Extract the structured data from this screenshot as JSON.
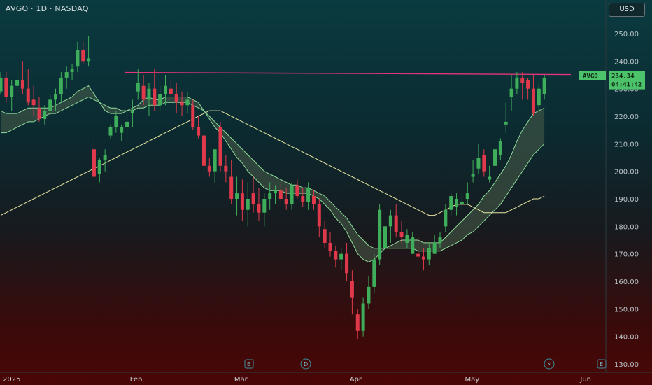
{
  "header": {
    "title": "AVGO · 1D · NASDAQ",
    "currency": "USD"
  },
  "price_tag": {
    "symbol": "AVGO",
    "price": "234.34",
    "countdown": "04:41:42"
  },
  "event_markers": [
    {
      "label": "E",
      "type": "earnings"
    },
    {
      "label": "D",
      "type": "dividend"
    },
    {
      "label": "⚡",
      "type": "flash"
    },
    {
      "label": "E",
      "type": "earnings"
    }
  ],
  "colors": {
    "up": "#3fae5a",
    "down": "#e0394b",
    "resistance": "#e0357a",
    "ema_band_fill": "#4a5f4a",
    "ema_line": "#8fdc9a",
    "sma_line": "#e6e3a0"
  },
  "chart_data": {
    "type": "candlestick",
    "symbol": "AVGO",
    "interval": "1D",
    "exchange": "NASDAQ",
    "ylim": [
      128,
      256
    ],
    "yticks": [
      130,
      140,
      150,
      160,
      170,
      180,
      190,
      200,
      210,
      220,
      230,
      240,
      250
    ],
    "ytick_labels": [
      "130.00",
      "140.00",
      "150.00",
      "160.00",
      "170.00",
      "180.00",
      "190.00",
      "200.00",
      "210.00",
      "220.00",
      "230.00",
      "240.00",
      "250.00"
    ],
    "xticks": [
      {
        "label": "2025",
        "index": 0
      },
      {
        "label": "Feb",
        "index": 22
      },
      {
        "label": "Mar",
        "index": 41
      },
      {
        "label": "Apr",
        "index": 62
      },
      {
        "label": "May",
        "index": 83
      },
      {
        "label": "Jun",
        "index": 104
      }
    ],
    "candles": [
      [
        229,
        236,
        228,
        234
      ],
      [
        234,
        236,
        225,
        227
      ],
      [
        227,
        233,
        222,
        231
      ],
      [
        231,
        235,
        225,
        233
      ],
      [
        233,
        240,
        228,
        230
      ],
      [
        230,
        237,
        224,
        225
      ],
      [
        226,
        231,
        220,
        224
      ],
      [
        223,
        227,
        218,
        219
      ],
      [
        219,
        224,
        217,
        222
      ],
      [
        222,
        228,
        220,
        226
      ],
      [
        226,
        230,
        222,
        228
      ],
      [
        228,
        236,
        225,
        234
      ],
      [
        234,
        238,
        230,
        236
      ],
      [
        236,
        239,
        233,
        237
      ],
      [
        238,
        247,
        236,
        244
      ],
      [
        244,
        247,
        239,
        240
      ],
      [
        240,
        249,
        238,
        241
      ],
      [
        208,
        214,
        196,
        198
      ],
      [
        199,
        205,
        196,
        204
      ],
      [
        204,
        208,
        200,
        206
      ],
      [
        213,
        217,
        212,
        216
      ],
      [
        216,
        222,
        214,
        220
      ],
      [
        214,
        217,
        211,
        216
      ],
      [
        216,
        222,
        212,
        218
      ],
      [
        221,
        226,
        216,
        222
      ],
      [
        229,
        237,
        226,
        232
      ],
      [
        231,
        235,
        224,
        226
      ],
      [
        226,
        232,
        220,
        230
      ],
      [
        230,
        237,
        222,
        224
      ],
      [
        224,
        231,
        222,
        228
      ],
      [
        228,
        235,
        224,
        231
      ],
      [
        230,
        233,
        226,
        228
      ],
      [
        228,
        232,
        221,
        225
      ],
      [
        225,
        229,
        220,
        224
      ],
      [
        224,
        229,
        221,
        226
      ],
      [
        224,
        226,
        215,
        216
      ],
      [
        216,
        220,
        212,
        213
      ],
      [
        213,
        216,
        200,
        202
      ],
      [
        202,
        205,
        198,
        200
      ],
      [
        200,
        208,
        196,
        208
      ],
      [
        216,
        218,
        200,
        202
      ],
      [
        202,
        206,
        196,
        200
      ],
      [
        198,
        204,
        188,
        190
      ],
      [
        190,
        198,
        184,
        192
      ],
      [
        192,
        197,
        182,
        186
      ],
      [
        186,
        196,
        180,
        190
      ],
      [
        192,
        198,
        185,
        188
      ],
      [
        188,
        194,
        182,
        185
      ],
      [
        185,
        192,
        180,
        190
      ],
      [
        190,
        196,
        186,
        192
      ],
      [
        192,
        195,
        188,
        193
      ],
      [
        193,
        196,
        189,
        190
      ],
      [
        190,
        194,
        186,
        188
      ],
      [
        188,
        196,
        186,
        195
      ],
      [
        195,
        197,
        190,
        191
      ],
      [
        191,
        194,
        187,
        189
      ],
      [
        189,
        196,
        186,
        194
      ],
      [
        191,
        193,
        186,
        188
      ],
      [
        188,
        190,
        176,
        180
      ],
      [
        179,
        182,
        172,
        174
      ],
      [
        174,
        178,
        169,
        171
      ],
      [
        171,
        173,
        165,
        168
      ],
      [
        168,
        172,
        164,
        170
      ],
      [
        170,
        174,
        160,
        163
      ],
      [
        160,
        164,
        148,
        154
      ],
      [
        148,
        150,
        139,
        142
      ],
      [
        142,
        154,
        140,
        152
      ],
      [
        152,
        162,
        150,
        158
      ],
      [
        158,
        170,
        156,
        168
      ],
      [
        168,
        188,
        166,
        186
      ],
      [
        172,
        182,
        170,
        180
      ],
      [
        180,
        186,
        174,
        184
      ],
      [
        184,
        188,
        176,
        178
      ],
      [
        178,
        182,
        174,
        176
      ],
      [
        174,
        179,
        172,
        177
      ],
      [
        170,
        178,
        170,
        176
      ],
      [
        170,
        176,
        168,
        169
      ],
      [
        169,
        172,
        164,
        168
      ],
      [
        168,
        174,
        166,
        172
      ],
      [
        170,
        177,
        170,
        174
      ],
      [
        174,
        178,
        172,
        176
      ],
      [
        180,
        188,
        178,
        186
      ],
      [
        186,
        192,
        184,
        191
      ],
      [
        187,
        192,
        184,
        190
      ],
      [
        188,
        193,
        186,
        189
      ],
      [
        190,
        196,
        188,
        192
      ],
      [
        198,
        204,
        196,
        199
      ],
      [
        201,
        210,
        199,
        205
      ],
      [
        206,
        208,
        198,
        200
      ],
      [
        197,
        202,
        196,
        198
      ],
      [
        202,
        210,
        200,
        208
      ],
      [
        206,
        212,
        204,
        211
      ],
      [
        217,
        225,
        214,
        218
      ],
      [
        227,
        235,
        222,
        230
      ],
      [
        230,
        236,
        228,
        234
      ],
      [
        234,
        236,
        226,
        232
      ],
      [
        233,
        234,
        226,
        230
      ],
      [
        230,
        235,
        220,
        221
      ],
      [
        224,
        232,
        222,
        230
      ],
      [
        228,
        235,
        226,
        234
      ]
    ],
    "ema_band": {
      "fast": [
        222,
        221,
        221,
        221,
        222,
        223,
        223,
        223,
        223,
        223,
        224,
        225,
        226,
        227,
        229,
        230,
        231,
        228,
        225,
        222,
        221,
        221,
        221,
        222,
        223,
        224,
        226,
        227,
        226,
        226,
        227,
        227,
        227,
        227,
        227,
        226,
        225,
        222,
        219,
        216,
        214,
        211,
        208,
        205,
        203,
        200,
        198,
        196,
        194,
        193,
        193,
        193,
        192,
        192,
        192,
        192,
        192,
        191,
        190,
        188,
        186,
        183,
        181,
        178,
        174,
        170,
        168,
        167,
        168,
        170,
        172,
        173,
        174,
        175,
        175,
        175,
        175,
        174,
        174,
        174,
        174,
        176,
        178,
        180,
        182,
        184,
        186,
        188,
        191,
        193,
        196,
        199,
        202,
        206,
        211,
        215,
        218,
        221,
        222,
        223
      ],
      "slow": [
        214,
        214,
        215,
        216,
        217,
        218,
        218,
        219,
        220,
        221,
        221,
        222,
        223,
        224,
        225,
        226,
        227,
        226,
        225,
        224,
        223,
        223,
        222,
        222,
        222,
        223,
        223,
        224,
        224,
        224,
        225,
        225,
        225,
        225,
        225,
        224,
        223,
        222,
        220,
        218,
        216,
        214,
        212,
        210,
        208,
        206,
        204,
        202,
        200,
        199,
        198,
        197,
        196,
        195,
        195,
        194,
        194,
        193,
        192,
        191,
        189,
        187,
        185,
        183,
        180,
        177,
        175,
        173,
        172,
        172,
        172,
        172,
        172,
        172,
        172,
        172,
        171,
        171,
        171,
        171,
        171,
        172,
        173,
        174,
        175,
        177,
        178,
        180,
        182,
        184,
        186,
        188,
        191,
        194,
        197,
        200,
        203,
        206,
        208,
        210
      ]
    },
    "sma": [
      184,
      185,
      186,
      187,
      188,
      189,
      190,
      191,
      192,
      193,
      194,
      195,
      196,
      197,
      198,
      199,
      200,
      201,
      202,
      203,
      204,
      205,
      206,
      207,
      208,
      209,
      210,
      211,
      212,
      213,
      214,
      215,
      216,
      217,
      218,
      219,
      220,
      221,
      222,
      222,
      222,
      221,
      220,
      219,
      218,
      217,
      216,
      215,
      214,
      213,
      212,
      211,
      210,
      209,
      208,
      207,
      206,
      205,
      204,
      203,
      202,
      201,
      200,
      199,
      198,
      197,
      196,
      195,
      194,
      193,
      192,
      191,
      190,
      189,
      188,
      187,
      186,
      185,
      184,
      184,
      185,
      186,
      187,
      188,
      188,
      188,
      187,
      186,
      185,
      185,
      185,
      185,
      185,
      186,
      187,
      188,
      189,
      190,
      190,
      191
    ],
    "resistance_level": 235.5
  }
}
